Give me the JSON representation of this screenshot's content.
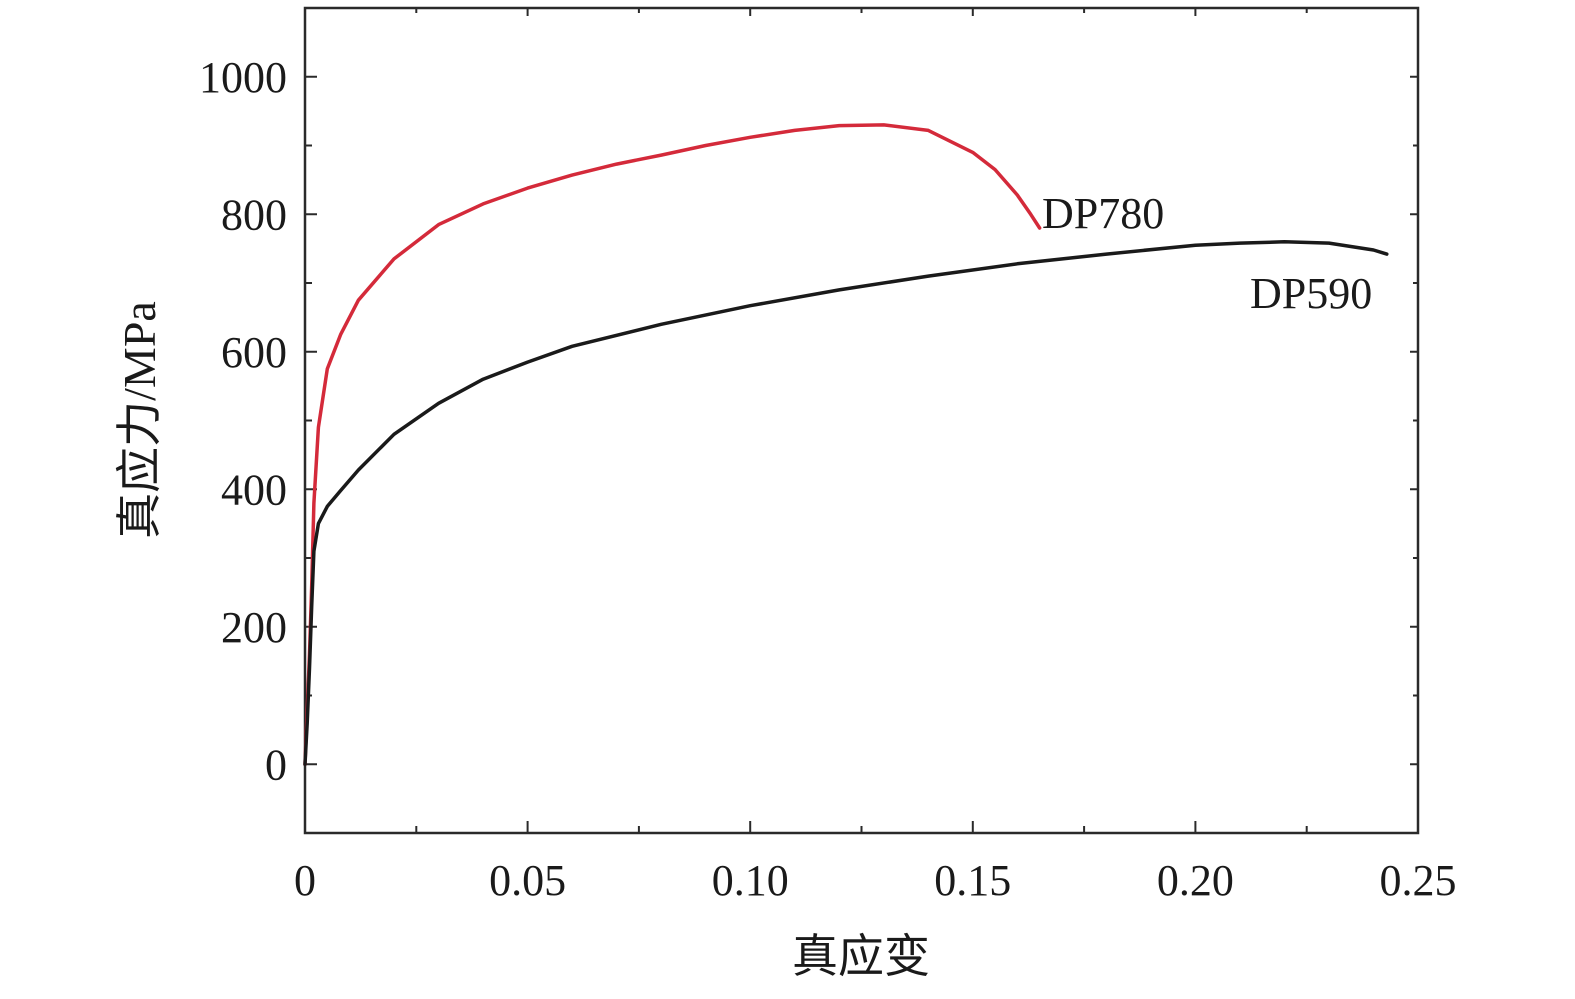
{
  "chart_data": {
    "type": "line",
    "xlabel": "真应变",
    "ylabel": "真应力/MPa",
    "xlim": [
      0,
      0.25
    ],
    "ylim": [
      -100,
      1100
    ],
    "x_ticks": [
      0,
      0.05,
      0.1,
      0.15,
      0.2,
      0.25
    ],
    "x_tick_labels": [
      "0",
      "0.05",
      "0.10",
      "0.15",
      "0.20",
      "0.25"
    ],
    "y_ticks": [
      0,
      200,
      400,
      600,
      800,
      1000
    ],
    "y_tick_labels": [
      "0",
      "200",
      "400",
      "600",
      "800",
      "1000"
    ],
    "grid": false,
    "series": [
      {
        "name": "DP780",
        "color": "#d42a3a",
        "x": [
          0,
          0.0005,
          0.001,
          0.0015,
          0.002,
          0.003,
          0.005,
          0.008,
          0.012,
          0.02,
          0.03,
          0.04,
          0.05,
          0.06,
          0.07,
          0.08,
          0.09,
          0.1,
          0.11,
          0.12,
          0.13,
          0.14,
          0.15,
          0.155,
          0.16,
          0.163,
          0.165
        ],
        "y": [
          0,
          80,
          160,
          260,
          380,
          490,
          575,
          625,
          675,
          735,
          785,
          815,
          838,
          857,
          873,
          886,
          900,
          912,
          922,
          929,
          930,
          922,
          890,
          865,
          828,
          800,
          780
        ]
      },
      {
        "name": "DP590",
        "color": "#1a1a1a",
        "x": [
          0,
          0.0005,
          0.001,
          0.0015,
          0.002,
          0.003,
          0.005,
          0.008,
          0.012,
          0.02,
          0.03,
          0.04,
          0.05,
          0.06,
          0.08,
          0.1,
          0.12,
          0.14,
          0.16,
          0.18,
          0.2,
          0.21,
          0.22,
          0.23,
          0.24,
          0.243
        ],
        "y": [
          0,
          60,
          140,
          230,
          310,
          350,
          375,
          398,
          428,
          480,
          525,
          560,
          585,
          608,
          640,
          667,
          690,
          710,
          728,
          742,
          755,
          758,
          760,
          758,
          748,
          742
        ]
      }
    ]
  }
}
